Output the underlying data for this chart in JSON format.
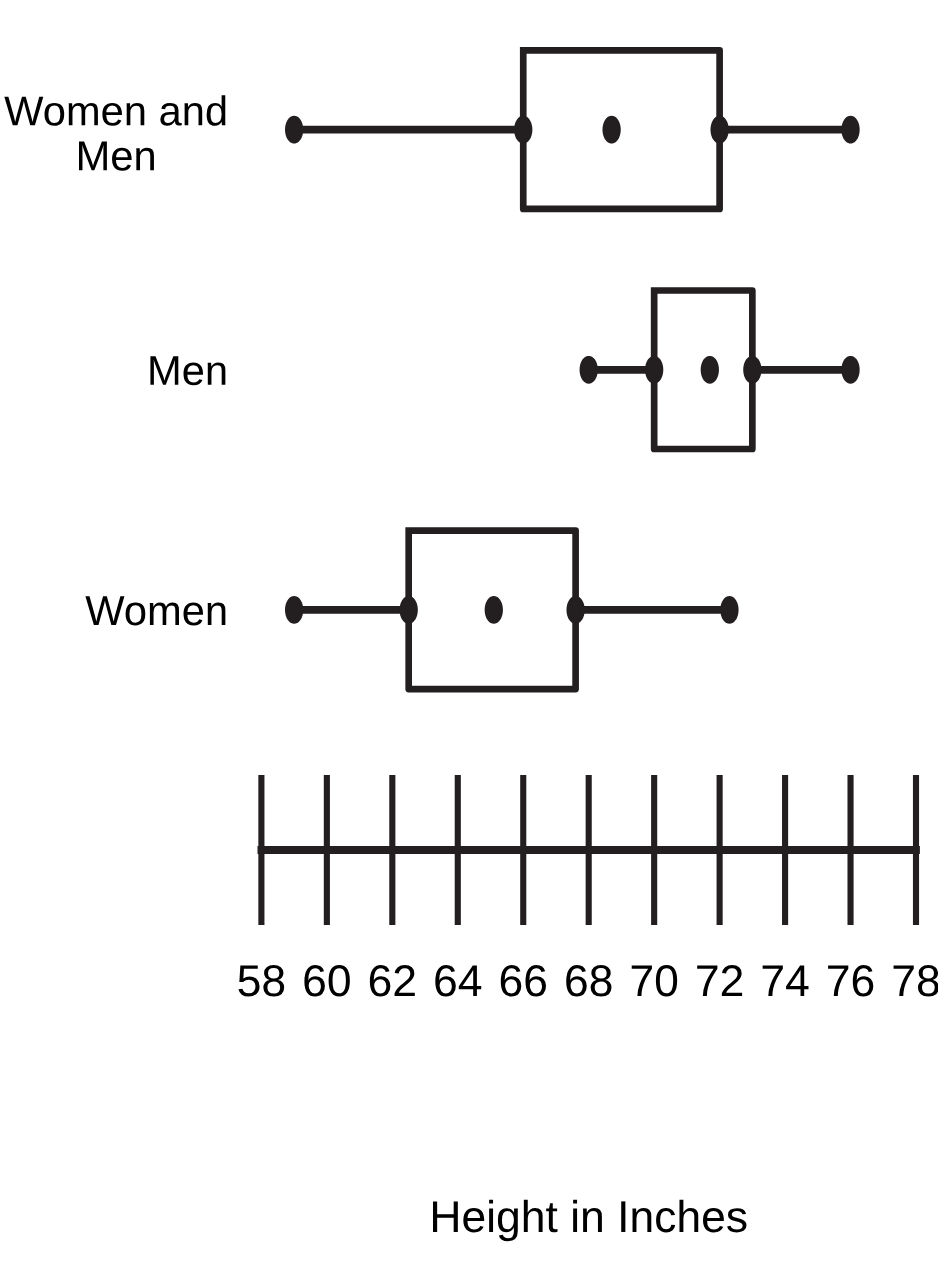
{
  "chart_data": {
    "type": "box",
    "orientation": "horizontal",
    "categories": [
      "Women and\nMen",
      "Men",
      "Women"
    ],
    "series": [
      {
        "color": "#231f20",
        "boxes": [
          {
            "low": 59,
            "q1": 66,
            "median": 68.7,
            "q3": 72,
            "high": 76
          },
          {
            "low": 68,
            "q1": 70,
            "median": 71.7,
            "q3": 73,
            "high": 76
          },
          {
            "low": 59,
            "q1": 62.5,
            "median": 65.1,
            "q3": 67.6,
            "high": 72.3
          }
        ]
      }
    ],
    "marker": "circle",
    "xlabel": "Height in Inches",
    "xlim": [
      58,
      78
    ],
    "xticks": [
      58,
      60,
      62,
      64,
      66,
      68,
      70,
      72,
      74,
      76,
      78
    ]
  }
}
